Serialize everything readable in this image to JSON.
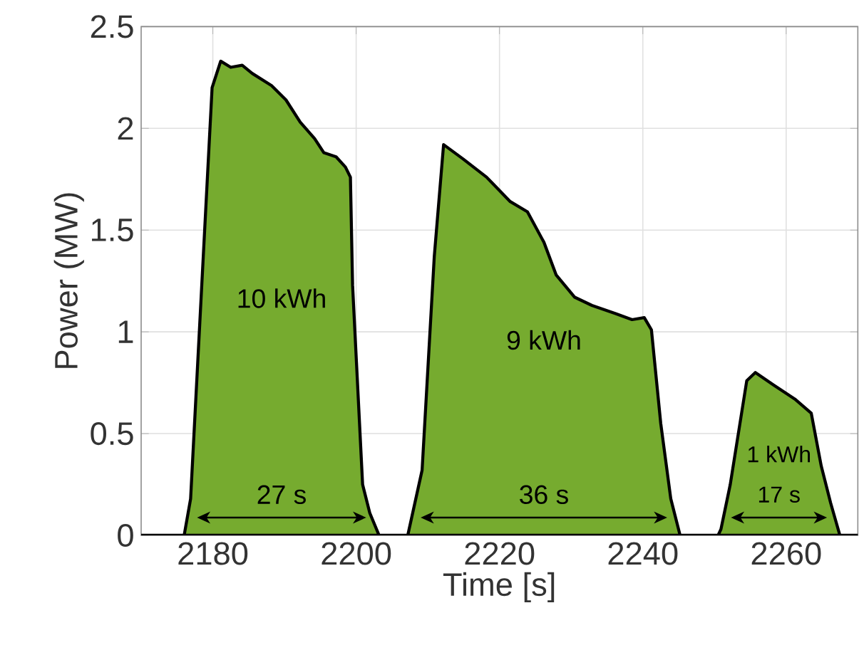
{
  "chart_data": {
    "type": "area",
    "xlabel": "Time [s]",
    "ylabel": "Power (MW)",
    "x": [
      2170,
      2176,
      2176.9,
      2179.9,
      2181.1,
      2182.5,
      2184.1,
      2185.5,
      2188.2,
      2190.2,
      2192.2,
      2194.2,
      2195.5,
      2197.2,
      2198.5,
      2199.2,
      2199.5,
      2200.9,
      2201.9,
      2203.2,
      2207.2,
      2209.2,
      2210.9,
      2212.2,
      2214.9,
      2218.2,
      2221.5,
      2223.9,
      2226.2,
      2227.9,
      2230.5,
      2232.9,
      2236.2,
      2238.5,
      2240.2,
      2241.2,
      2242.5,
      2243.9,
      2245.2,
      2250.5,
      2250.9,
      2252.2,
      2254.5,
      2255.7,
      2258.2,
      2261.2,
      2263.5,
      2264.9,
      2266.2,
      2267.5,
      2270
    ],
    "series": [
      {
        "color": "#76ab2f",
        "values": [
          0,
          0,
          0.18,
          2.2,
          2.33,
          2.3,
          2.31,
          2.27,
          2.21,
          2.14,
          2.03,
          1.95,
          1.88,
          1.86,
          1.81,
          1.76,
          1.23,
          0.25,
          0.11,
          0,
          0,
          0.32,
          1.37,
          1.92,
          1.85,
          1.76,
          1.64,
          1.59,
          1.44,
          1.28,
          1.17,
          1.13,
          1.09,
          1.06,
          1.07,
          1.01,
          0.55,
          0.18,
          0,
          0,
          0.03,
          0.25,
          0.76,
          0.8,
          0.74,
          0.67,
          0.6,
          0.34,
          0.16,
          0,
          0
        ]
      }
    ],
    "xlim": [
      2170,
      2270
    ],
    "ylim": [
      0,
      2.5
    ],
    "xticks": [
      2180,
      2200,
      2220,
      2240,
      2260
    ],
    "yticks": [
      0,
      0.5,
      1,
      1.5,
      2,
      2.5
    ],
    "grid": true,
    "annotations": [
      "10 kWh",
      "9 kWh",
      "1 kWh",
      "27 s",
      "36 s",
      "17 s"
    ]
  }
}
